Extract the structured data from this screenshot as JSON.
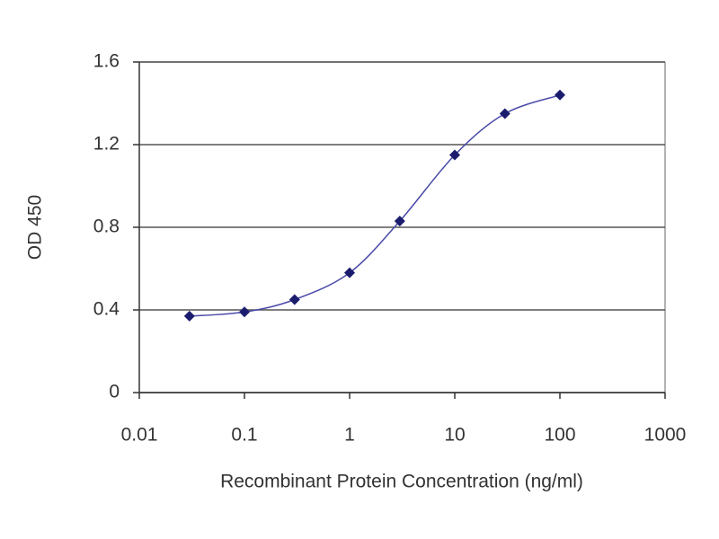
{
  "chart_data": {
    "type": "line",
    "xlabel": "Recombinant Protein Concentration (ng/ml)",
    "ylabel": "OD 450",
    "x": [
      0.03,
      0.1,
      0.3,
      1,
      3,
      10,
      30,
      100
    ],
    "values": [
      0.37,
      0.39,
      0.45,
      0.58,
      0.83,
      1.15,
      1.35,
      1.44
    ],
    "color": "#4a4aa8",
    "marker_color": "#1c1c6e",
    "xscale": "log",
    "xlim": [
      0.01,
      1000
    ],
    "xticks": [
      0.01,
      0.1,
      1,
      10,
      100,
      1000
    ],
    "ylim": [
      0,
      1.6
    ],
    "yticks": [
      0,
      0.4,
      0.8,
      1.2,
      1.6
    ],
    "grid": true
  }
}
